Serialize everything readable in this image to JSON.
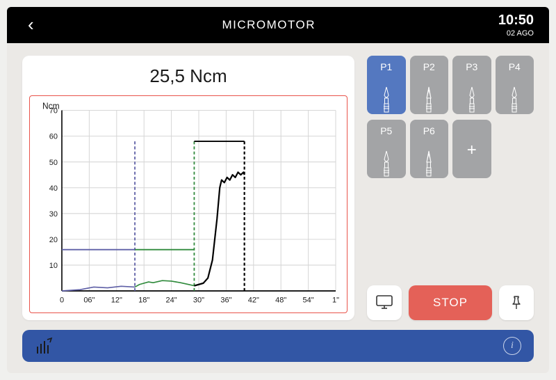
{
  "header": {
    "title": "MICROMOTOR",
    "time": "10:50",
    "date": "02 AGO"
  },
  "torque_readout": "25,5 Ncm",
  "chart": {
    "type": "line",
    "y_label": "Ncm",
    "y_label_fontsize": 12,
    "ylim": [
      0,
      70
    ],
    "ytick_step": 10,
    "x_ticks": [
      "0",
      "06\"",
      "12\"",
      "18\"",
      "24\"",
      "30\"",
      "36\"",
      "42\"",
      "48\"",
      "54\"",
      "1\""
    ],
    "x_range": [
      0,
      60
    ],
    "background_color": "#ffffff",
    "grid_color": "#d6d6d6",
    "border_color": "#e9534a",
    "tick_fontsize": 11,
    "tick_color": "#1a1a1a",
    "series": [
      {
        "name": "threshold_blue",
        "color": "#5e5fa6",
        "style": "solid",
        "width": 1.8,
        "points": [
          [
            0,
            16
          ],
          [
            16,
            16
          ]
        ]
      },
      {
        "name": "threshold_blue_dash",
        "color": "#5e5fa6",
        "style": "dashed",
        "width": 1.8,
        "points": [
          [
            16,
            0
          ],
          [
            16,
            58
          ]
        ]
      },
      {
        "name": "threshold_green_h",
        "color": "#2f8a3b",
        "style": "solid",
        "width": 1.8,
        "points": [
          [
            16,
            16
          ],
          [
            29,
            16
          ]
        ]
      },
      {
        "name": "threshold_green_dash",
        "color": "#2f8a3b",
        "style": "dashed",
        "width": 1.8,
        "points": [
          [
            29,
            0
          ],
          [
            29,
            58
          ]
        ]
      },
      {
        "name": "limit_black_h",
        "color": "#000000",
        "style": "solid",
        "width": 1.8,
        "points": [
          [
            29,
            58
          ],
          [
            40,
            58
          ]
        ]
      },
      {
        "name": "limit_black_dash",
        "color": "#000000",
        "style": "dashed",
        "width": 2.2,
        "points": [
          [
            40,
            0
          ],
          [
            40,
            58
          ]
        ]
      },
      {
        "name": "trace_blue",
        "color": "#5e5fa6",
        "style": "solid",
        "width": 1.6,
        "points": [
          [
            0,
            0
          ],
          [
            4,
            0.5
          ],
          [
            7,
            1.5
          ],
          [
            10,
            1.2
          ],
          [
            13,
            1.8
          ],
          [
            16,
            1.5
          ]
        ]
      },
      {
        "name": "trace_green",
        "color": "#2f8a3b",
        "style": "solid",
        "width": 1.6,
        "points": [
          [
            16,
            1.5
          ],
          [
            17,
            2.5
          ],
          [
            19,
            3.5
          ],
          [
            20,
            3.2
          ],
          [
            22,
            4
          ],
          [
            24,
            3.8
          ],
          [
            26,
            3.2
          ],
          [
            28,
            2.4
          ],
          [
            29,
            2
          ]
        ]
      },
      {
        "name": "trace_black",
        "color": "#000000",
        "style": "solid",
        "width": 2.2,
        "points": [
          [
            29,
            2
          ],
          [
            30,
            2.5
          ],
          [
            31,
            3
          ],
          [
            32,
            5
          ],
          [
            33,
            12
          ],
          [
            34,
            28
          ],
          [
            34.6,
            40
          ],
          [
            35,
            43
          ],
          [
            35.6,
            42
          ],
          [
            36.2,
            44
          ],
          [
            36.8,
            43
          ],
          [
            37.4,
            45
          ],
          [
            38,
            44
          ],
          [
            38.6,
            46
          ],
          [
            39.2,
            45
          ],
          [
            39.8,
            46
          ],
          [
            40,
            45
          ]
        ]
      }
    ]
  },
  "programs": {
    "row1": [
      {
        "label": "P1",
        "selected": true,
        "icon": "bit-plain"
      },
      {
        "label": "P2",
        "selected": false,
        "icon": "bit-drill"
      },
      {
        "label": "P3",
        "selected": false,
        "icon": "bit-plain"
      },
      {
        "label": "P4",
        "selected": false,
        "icon": "bit-plain"
      }
    ],
    "row2": [
      {
        "label": "P5",
        "selected": false,
        "icon": "bit-plain"
      },
      {
        "label": "P6",
        "selected": false,
        "icon": "bit-drill"
      },
      {
        "label": "",
        "selected": false,
        "icon": "add"
      },
      {
        "label": "",
        "selected": false,
        "icon": "none"
      }
    ]
  },
  "actions": {
    "stop_label": "STOP"
  },
  "colors": {
    "header_bg": "#000000",
    "page_bg": "#ebe9e6",
    "card_bg": "#ffffff",
    "program_bg": "#a3a4a6",
    "program_selected_bg": "#5478c0",
    "stop_bg": "#e46158",
    "footer_bg": "#3256a5"
  }
}
